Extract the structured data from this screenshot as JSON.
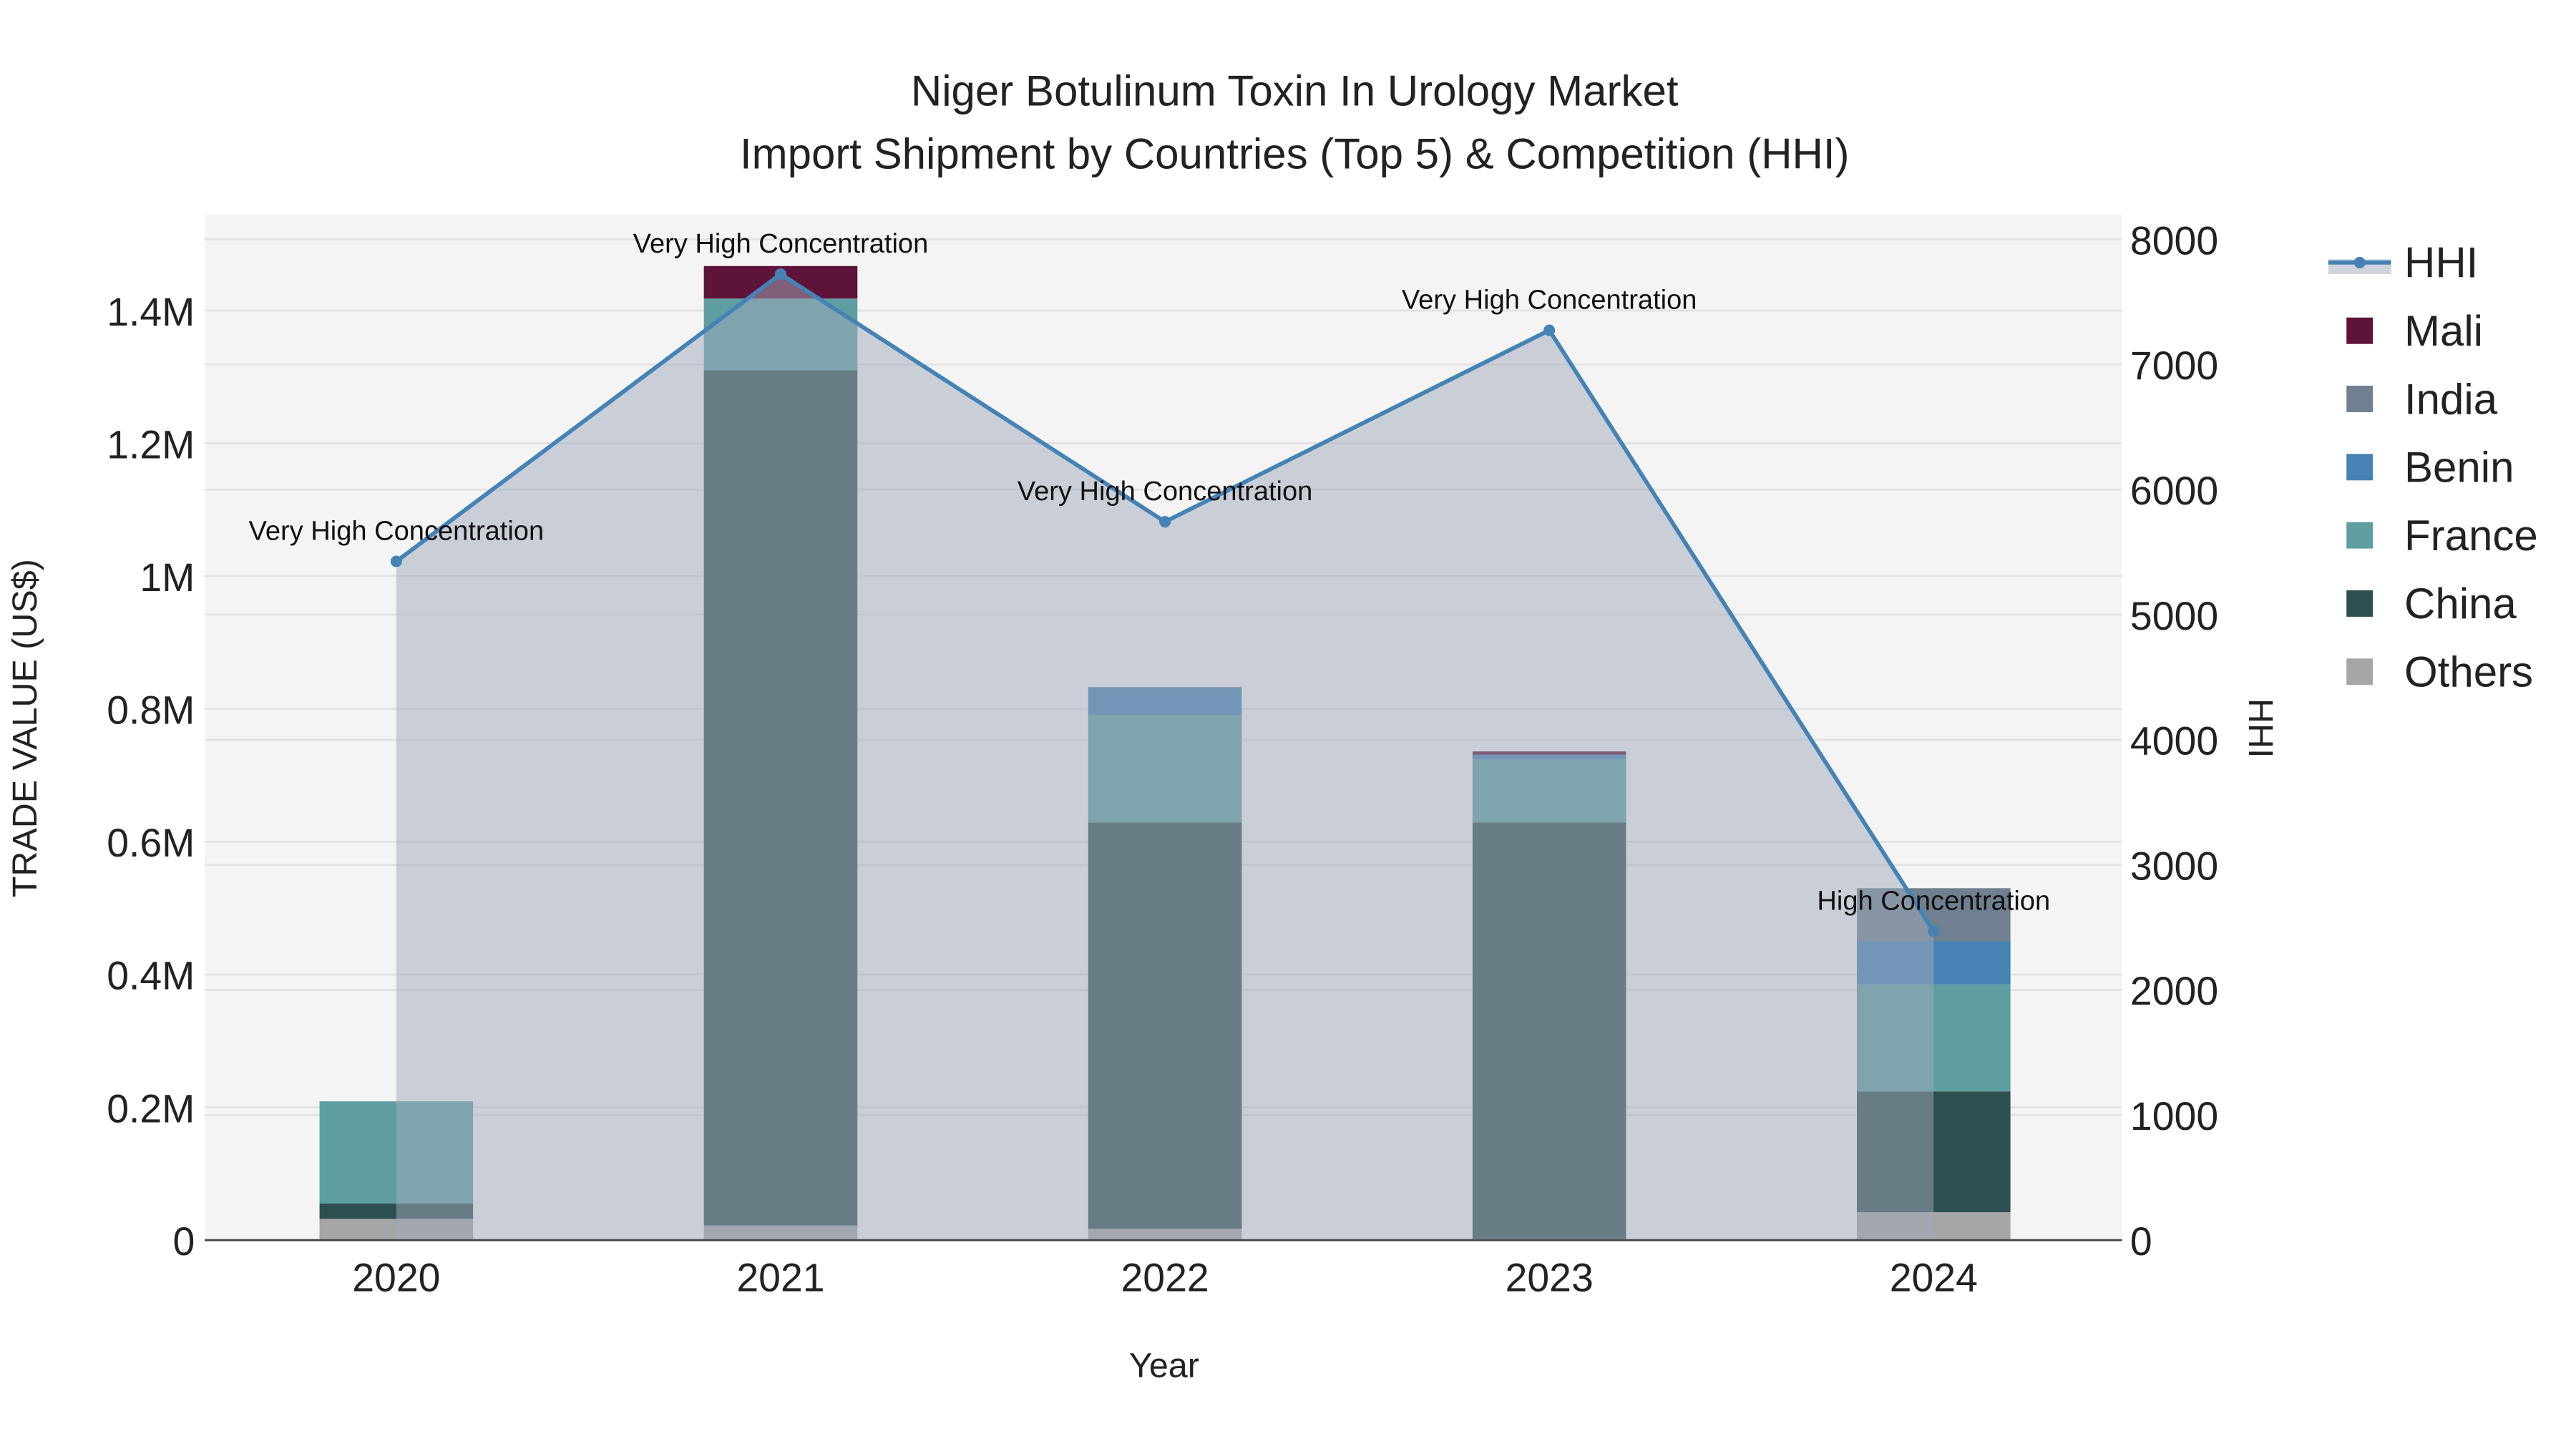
{
  "chart_data": {
    "type": "bar",
    "title": "Niger Botulinum Toxin In Urology Market",
    "subtitle": "Import Shipment by Countries (Top 5) & Competition (HHI)",
    "xlabel": "Year",
    "ylabel": "TRADE VALUE (US$)",
    "y2label": "HHI",
    "categories": [
      "2020",
      "2021",
      "2022",
      "2023",
      "2024"
    ],
    "ylim": [
      0,
      1530000
    ],
    "y2lim": [
      0,
      8200
    ],
    "yticks": [
      0,
      200000,
      400000,
      600000,
      800000,
      1000000,
      1200000,
      1400000
    ],
    "ytick_labels": [
      "0",
      "0.2M",
      "0.4M",
      "0.6M",
      "0.8M",
      "1M",
      "1.2M",
      "1.4M"
    ],
    "y2ticks": [
      0,
      1000,
      2000,
      3000,
      4000,
      5000,
      6000,
      7000,
      8000
    ],
    "y2tick_labels": [
      "0",
      "1000",
      "2000",
      "3000",
      "4000",
      "5000",
      "6000",
      "7000",
      "8000"
    ],
    "series": [
      {
        "name": "Others",
        "color": "#a6a6a6",
        "values": [
          32000,
          22000,
          17000,
          2000,
          42000
        ]
      },
      {
        "name": "China",
        "color": "#2e4f4f",
        "values": [
          23000,
          1288000,
          612000,
          627000,
          182000
        ]
      },
      {
        "name": "France",
        "color": "#5f9ea0",
        "values": [
          154000,
          108000,
          162000,
          95000,
          161000
        ]
      },
      {
        "name": "Benin",
        "color": "#4682b4",
        "values": [
          0,
          0,
          40000,
          7000,
          65000
        ]
      },
      {
        "name": "India",
        "color": "#708090",
        "values": [
          0,
          0,
          2000,
          0,
          80000
        ]
      },
      {
        "name": "Mali",
        "color": "#5e1338",
        "values": [
          0,
          49000,
          0,
          5000,
          0
        ]
      }
    ],
    "hhi": {
      "name": "HHI",
      "color": "#4682b4",
      "values": [
        5426,
        7723,
        5743,
        7274,
        2469
      ],
      "annotations": [
        "Very High Concentration",
        "Very High Concentration",
        "Very High Concentration",
        "Very High Concentration",
        "High Concentration"
      ]
    },
    "legend_order": [
      "HHI",
      "Mali",
      "India",
      "Benin",
      "France",
      "China",
      "Others"
    ],
    "legend_placement": "right",
    "grid": true
  }
}
